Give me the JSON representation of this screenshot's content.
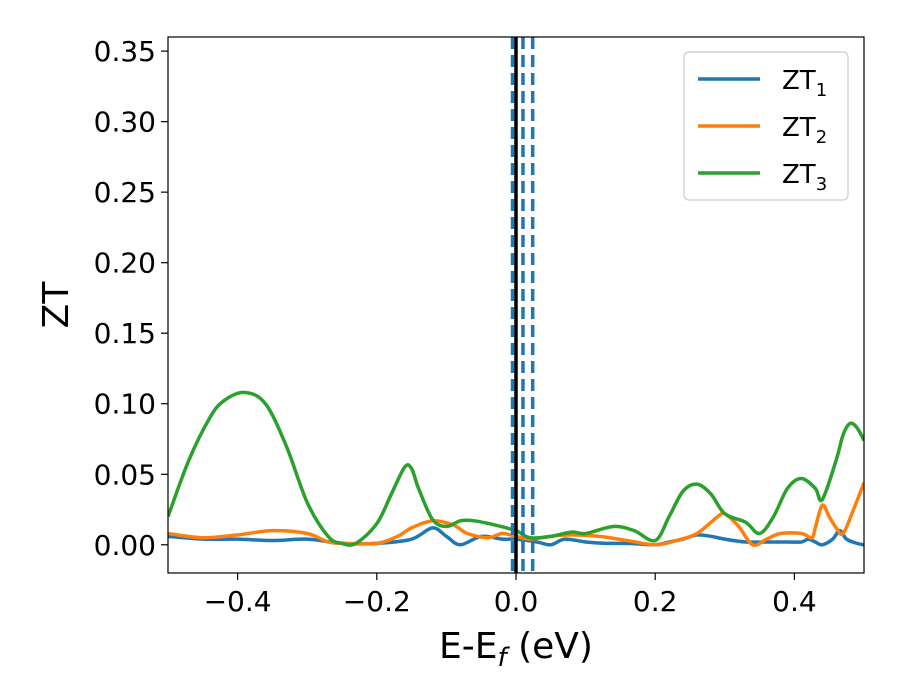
{
  "chart_data": {
    "type": "line",
    "xlabel": "E-E",
    "xlabel_sub": "f",
    "xlabel_unit": " (eV)",
    "ylabel": "ZT",
    "xlim": [
      -0.5,
      0.5
    ],
    "ylim": [
      -0.02,
      0.36
    ],
    "xticks": [
      -0.4,
      -0.2,
      0.0,
      0.2,
      0.4
    ],
    "xtick_labels": [
      "−0.4",
      "−0.2",
      "0.0",
      "0.2",
      "0.4"
    ],
    "yticks": [
      0.0,
      0.05,
      0.1,
      0.15,
      0.2,
      0.25,
      0.3,
      0.35
    ],
    "ytick_labels": [
      "0.00",
      "0.05",
      "0.10",
      "0.15",
      "0.20",
      "0.25",
      "0.30",
      "0.35"
    ],
    "grid": false,
    "legend_position": "top-right",
    "vlines": [
      {
        "x": 0.0,
        "style": "solid",
        "color": "#000000"
      },
      {
        "x": -0.005,
        "style": "dashed",
        "color": "#1f77b4"
      },
      {
        "x": 0.01,
        "style": "dashed",
        "color": "#1f77b4"
      },
      {
        "x": 0.024,
        "style": "dashed",
        "color": "#1f77b4"
      }
    ],
    "series": [
      {
        "name": "ZT",
        "sub": "1",
        "color": "#1f77b4",
        "points": [
          [
            -0.5,
            0.006
          ],
          [
            -0.45,
            0.004
          ],
          [
            -0.4,
            0.004
          ],
          [
            -0.35,
            0.003
          ],
          [
            -0.3,
            0.004
          ],
          [
            -0.25,
            0.001
          ],
          [
            -0.2,
            0.001
          ],
          [
            -0.15,
            0.004
          ],
          [
            -0.12,
            0.012
          ],
          [
            -0.1,
            0.006
          ],
          [
            -0.08,
            0.0
          ],
          [
            -0.05,
            0.006
          ],
          [
            -0.02,
            0.004
          ],
          [
            0.0,
            0.004
          ],
          [
            0.03,
            0.002
          ],
          [
            0.05,
            0.0
          ],
          [
            0.07,
            0.004
          ],
          [
            0.1,
            0.002
          ],
          [
            0.13,
            0.001
          ],
          [
            0.16,
            0.001
          ],
          [
            0.2,
            0.0
          ],
          [
            0.22,
            0.002
          ],
          [
            0.24,
            0.004
          ],
          [
            0.26,
            0.007
          ],
          [
            0.28,
            0.006
          ],
          [
            0.3,
            0.004
          ],
          [
            0.33,
            0.002
          ],
          [
            0.36,
            0.002
          ],
          [
            0.39,
            0.002
          ],
          [
            0.41,
            0.002
          ],
          [
            0.42,
            0.004
          ],
          [
            0.43,
            0.002
          ],
          [
            0.44,
            0.0
          ],
          [
            0.455,
            0.004
          ],
          [
            0.465,
            0.01
          ],
          [
            0.475,
            0.004
          ],
          [
            0.49,
            0.001
          ],
          [
            0.5,
            0.0
          ]
        ]
      },
      {
        "name": "ZT",
        "sub": "2",
        "color": "#ff7f0e",
        "points": [
          [
            -0.5,
            0.008
          ],
          [
            -0.45,
            0.005
          ],
          [
            -0.4,
            0.007
          ],
          [
            -0.35,
            0.01
          ],
          [
            -0.3,
            0.008
          ],
          [
            -0.27,
            0.002
          ],
          [
            -0.25,
            0.001
          ],
          [
            -0.2,
            0.001
          ],
          [
            -0.17,
            0.006
          ],
          [
            -0.15,
            0.012
          ],
          [
            -0.12,
            0.017
          ],
          [
            -0.09,
            0.014
          ],
          [
            -0.07,
            0.008
          ],
          [
            -0.04,
            0.005
          ],
          [
            -0.02,
            0.008
          ],
          [
            0.0,
            0.006
          ],
          [
            0.02,
            0.004
          ],
          [
            0.05,
            0.006
          ],
          [
            0.08,
            0.007
          ],
          [
            0.12,
            0.006
          ],
          [
            0.16,
            0.003
          ],
          [
            0.2,
            0.0
          ],
          [
            0.23,
            0.003
          ],
          [
            0.26,
            0.008
          ],
          [
            0.29,
            0.02
          ],
          [
            0.3,
            0.022
          ],
          [
            0.32,
            0.013
          ],
          [
            0.34,
            0.0
          ],
          [
            0.36,
            0.004
          ],
          [
            0.38,
            0.008
          ],
          [
            0.41,
            0.008
          ],
          [
            0.425,
            0.005
          ],
          [
            0.43,
            0.012
          ],
          [
            0.44,
            0.028
          ],
          [
            0.45,
            0.02
          ],
          [
            0.46,
            0.012
          ],
          [
            0.47,
            0.008
          ],
          [
            0.485,
            0.025
          ],
          [
            0.5,
            0.044
          ]
        ]
      },
      {
        "name": "ZT",
        "sub": "3",
        "color": "#2ca02c",
        "points": [
          [
            -0.5,
            0.02
          ],
          [
            -0.47,
            0.06
          ],
          [
            -0.44,
            0.09
          ],
          [
            -0.42,
            0.102
          ],
          [
            -0.39,
            0.108
          ],
          [
            -0.36,
            0.1
          ],
          [
            -0.33,
            0.07
          ],
          [
            -0.3,
            0.03
          ],
          [
            -0.27,
            0.006
          ],
          [
            -0.25,
            0.001
          ],
          [
            -0.23,
            0.001
          ],
          [
            -0.2,
            0.015
          ],
          [
            -0.18,
            0.035
          ],
          [
            -0.16,
            0.055
          ],
          [
            -0.15,
            0.054
          ],
          [
            -0.14,
            0.04
          ],
          [
            -0.12,
            0.018
          ],
          [
            -0.1,
            0.013
          ],
          [
            -0.08,
            0.017
          ],
          [
            -0.06,
            0.017
          ],
          [
            -0.03,
            0.014
          ],
          [
            0.0,
            0.01
          ],
          [
            0.02,
            0.005
          ],
          [
            0.05,
            0.006
          ],
          [
            0.08,
            0.009
          ],
          [
            0.1,
            0.008
          ],
          [
            0.14,
            0.013
          ],
          [
            0.17,
            0.01
          ],
          [
            0.2,
            0.003
          ],
          [
            0.22,
            0.02
          ],
          [
            0.24,
            0.038
          ],
          [
            0.26,
            0.043
          ],
          [
            0.28,
            0.036
          ],
          [
            0.3,
            0.022
          ],
          [
            0.33,
            0.016
          ],
          [
            0.35,
            0.008
          ],
          [
            0.37,
            0.02
          ],
          [
            0.39,
            0.04
          ],
          [
            0.41,
            0.047
          ],
          [
            0.43,
            0.04
          ],
          [
            0.44,
            0.032
          ],
          [
            0.46,
            0.06
          ],
          [
            0.47,
            0.078
          ],
          [
            0.48,
            0.086
          ],
          [
            0.49,
            0.083
          ],
          [
            0.5,
            0.074
          ]
        ]
      }
    ]
  }
}
